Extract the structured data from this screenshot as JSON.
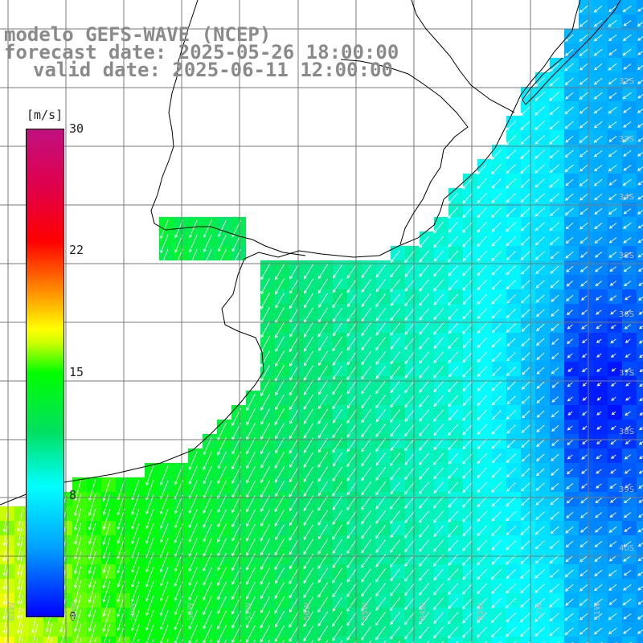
{
  "title": {
    "line1": "modelo GEFS-WAVE (NCEP)",
    "line2": "forecast date: 2025-05-26 18:00:00",
    "line3": "valid date: 2025-06-11 12:00:00"
  },
  "colorbar": {
    "unit": "[m/s]",
    "ticks": [
      "30",
      "22",
      "15",
      "8",
      "0"
    ],
    "tick_values": [
      30,
      22,
      15,
      8,
      0
    ],
    "min": 0,
    "max": 30
  },
  "lat_labels": [
    "32S",
    "33S",
    "34S",
    "35S",
    "36S",
    "37S",
    "38S",
    "39S",
    "40S"
  ],
  "lon_labels": [
    "61W",
    "60W",
    "59W",
    "58W",
    "57W",
    "56W",
    "55W",
    "54W",
    "53W",
    "52W",
    "51W"
  ],
  "colors": {
    "land": "#ffffff",
    "coast": "#000000",
    "grid": "#7a7a7a",
    "arrows": "#ffffff",
    "title": "#8a8a8a"
  }
}
